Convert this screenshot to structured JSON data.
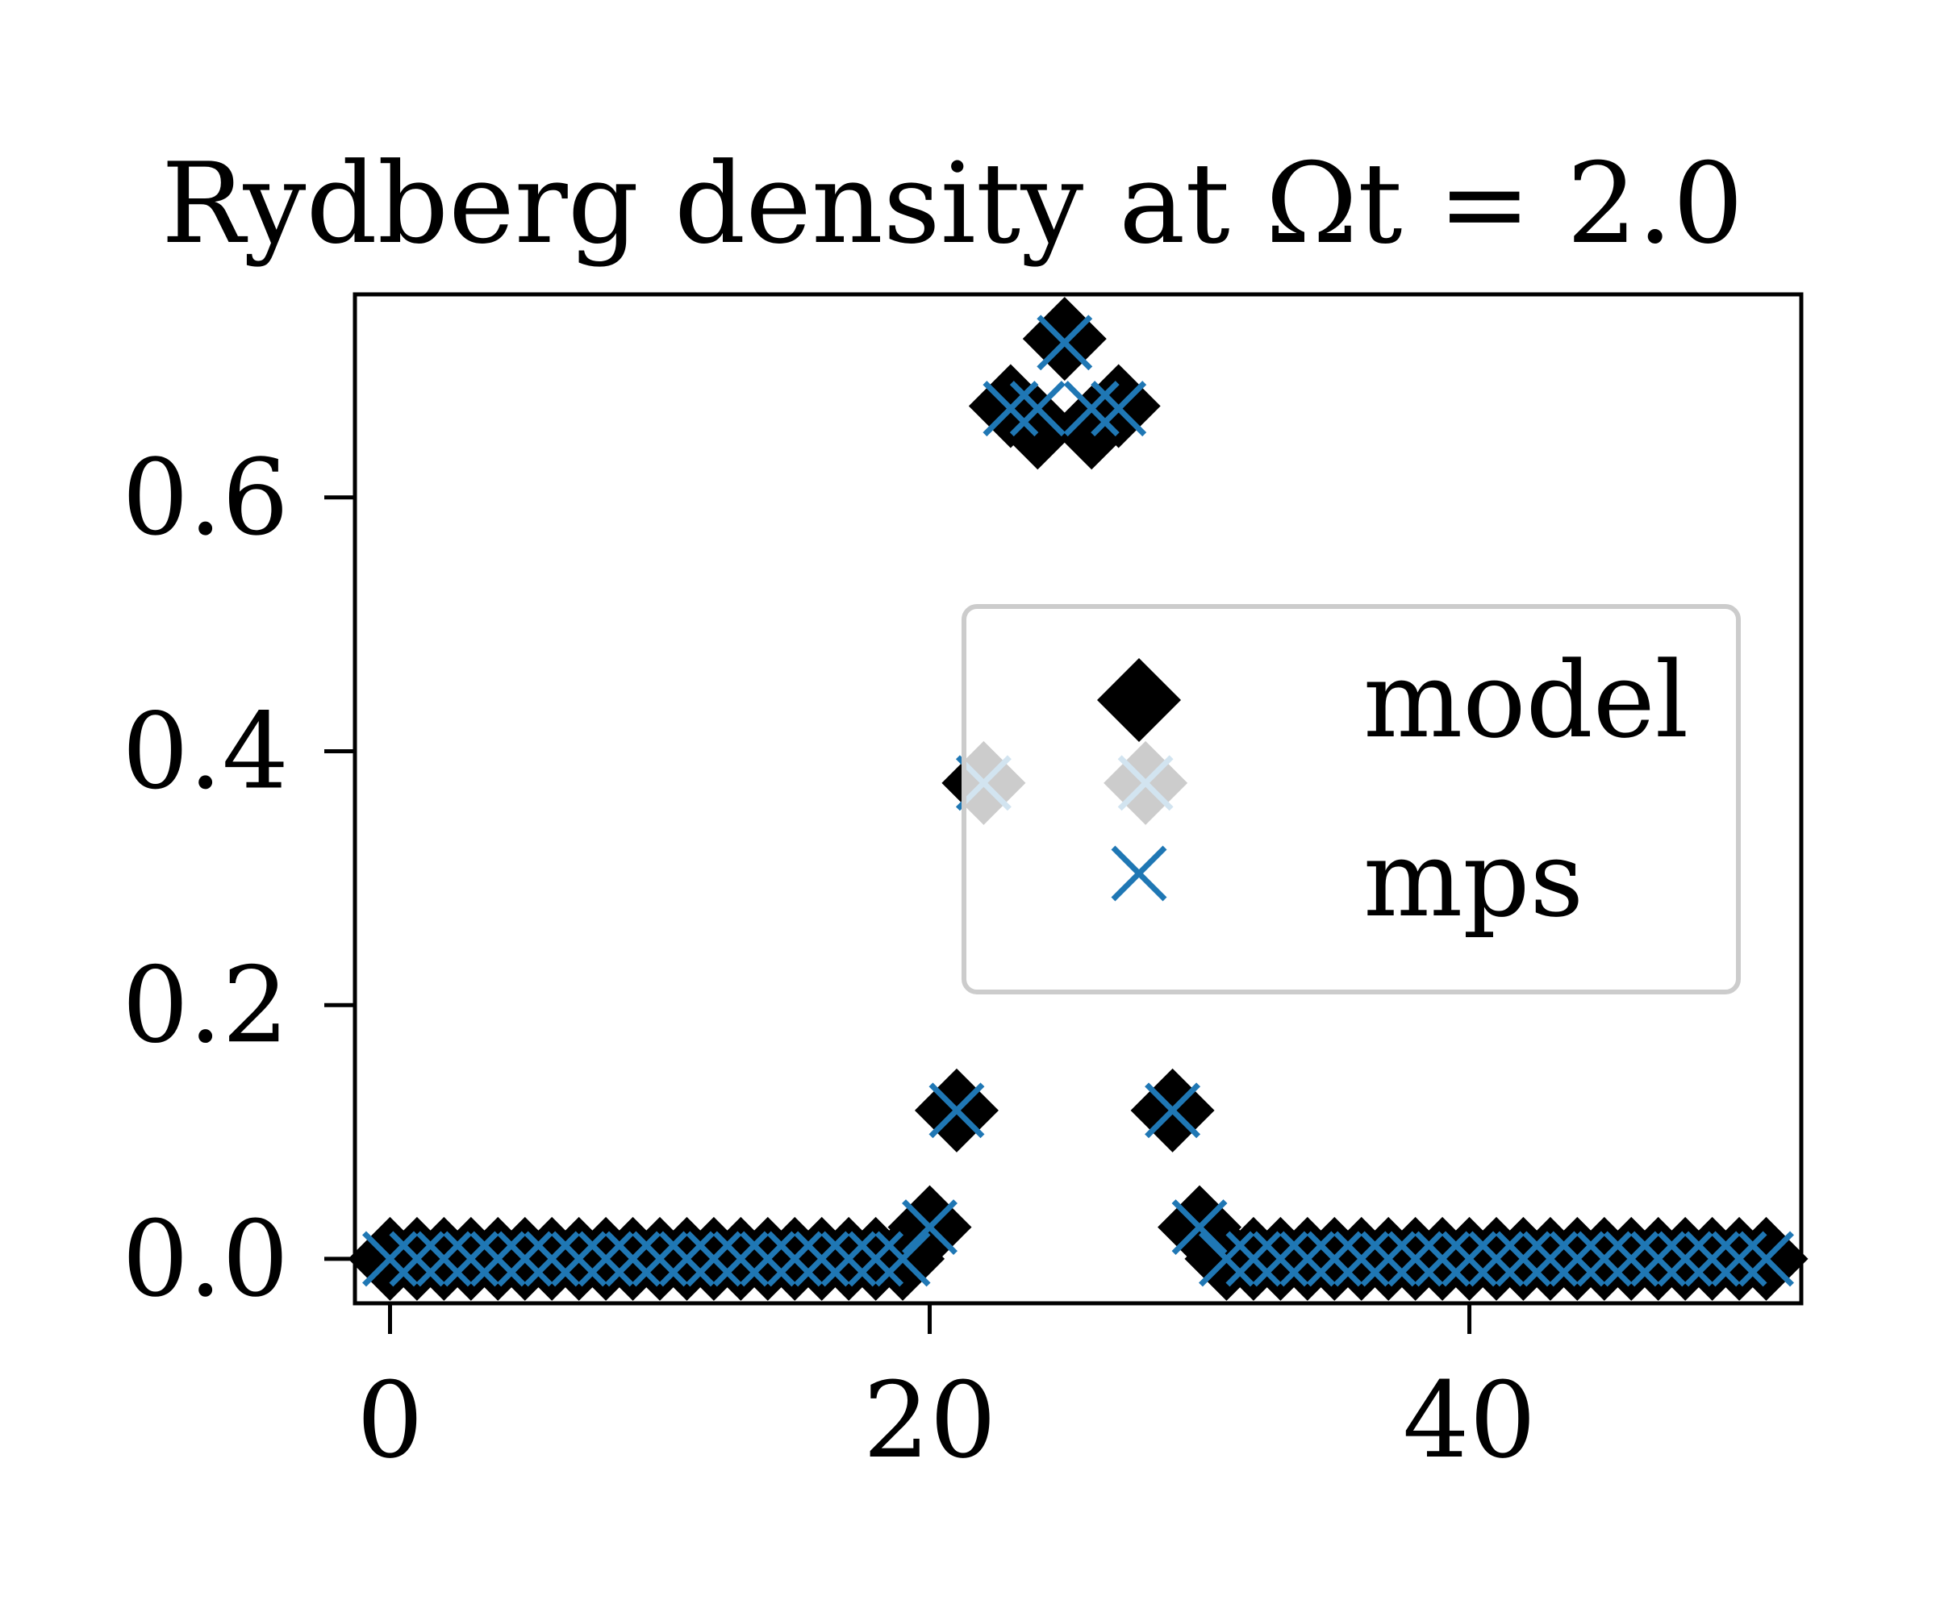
{
  "chart_data": {
    "type": "scatter",
    "title": "Rydberg density at Ωt = 2.0",
    "xlabel": "",
    "ylabel": "",
    "xlim": [
      -1.3,
      52.3
    ],
    "ylim": [
      -0.035,
      0.76
    ],
    "xticks": [
      0,
      20,
      40
    ],
    "xtick_labels": [
      "0",
      "20",
      "40"
    ],
    "yticks": [
      0.0,
      0.2,
      0.4,
      0.6
    ],
    "ytick_labels": [
      "0.0",
      "0.2",
      "0.4",
      "0.6"
    ],
    "grid": false,
    "legend_position": "center-right",
    "series": [
      {
        "name": "model",
        "marker": "diamond",
        "color": "#000000",
        "x": [
          0,
          1,
          2,
          3,
          4,
          5,
          6,
          7,
          8,
          9,
          10,
          11,
          12,
          13,
          14,
          15,
          16,
          17,
          18,
          19,
          20,
          21,
          22,
          23,
          24,
          25,
          26,
          27,
          28,
          29,
          30,
          31,
          32,
          33,
          34,
          35,
          36,
          37,
          38,
          39,
          40,
          41,
          42,
          43,
          44,
          45,
          46,
          47,
          48,
          49,
          50,
          51
        ],
        "y": [
          0.0,
          0.0,
          0.0,
          0.0,
          0.0,
          0.0,
          0.0,
          0.0,
          0.0,
          0.0,
          0.0,
          0.0,
          0.0,
          0.0,
          0.0,
          0.0,
          0.0,
          0.0,
          0.0,
          0.0,
          0.025,
          0.117,
          0.375,
          0.672,
          0.655,
          0.725,
          0.655,
          0.672,
          0.375,
          0.117,
          0.025,
          0.0,
          0.0,
          0.0,
          0.0,
          0.0,
          0.0,
          0.0,
          0.0,
          0.0,
          0.0,
          0.0,
          0.0,
          0.0,
          0.0,
          0.0,
          0.0,
          0.0,
          0.0,
          0.0,
          0.0,
          0.0
        ]
      },
      {
        "name": "mps",
        "marker": "x",
        "color": "#1f77b4",
        "x": [
          0,
          1,
          2,
          3,
          4,
          5,
          6,
          7,
          8,
          9,
          10,
          11,
          12,
          13,
          14,
          15,
          16,
          17,
          18,
          19,
          20,
          21,
          22,
          23,
          24,
          25,
          26,
          27,
          28,
          29,
          30,
          31,
          32,
          33,
          34,
          35,
          36,
          37,
          38,
          39,
          40,
          41,
          42,
          43,
          44,
          45,
          46,
          47,
          48,
          49,
          50,
          51
        ],
        "y": [
          0.0,
          0.0,
          0.0,
          0.0,
          0.0,
          0.0,
          0.0,
          0.0,
          0.0,
          0.0,
          0.0,
          0.0,
          0.0,
          0.0,
          0.0,
          0.0,
          0.0,
          0.0,
          0.0,
          0.0,
          0.025,
          0.117,
          0.375,
          0.67,
          0.67,
          0.722,
          0.67,
          0.67,
          0.375,
          0.117,
          0.025,
          0.0,
          0.0,
          0.0,
          0.0,
          0.0,
          0.0,
          0.0,
          0.0,
          0.0,
          0.0,
          0.0,
          0.0,
          0.0,
          0.0,
          0.0,
          0.0,
          0.0,
          0.0,
          0.0,
          0.0,
          0.0
        ]
      }
    ]
  }
}
